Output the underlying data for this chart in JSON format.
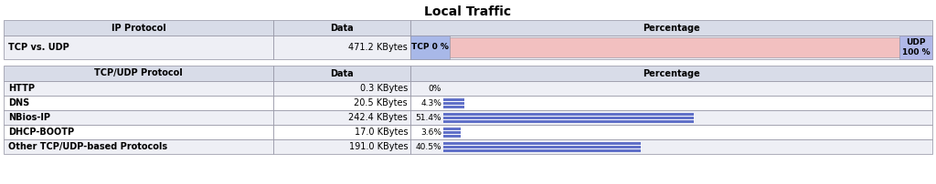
{
  "title": "Local Traffic",
  "top_table": {
    "headers": [
      "IP Protocol",
      "Data",
      "Percentage"
    ],
    "row": {
      "label": "TCP vs. UDP",
      "data": "471.2 KBytes",
      "tcp_label": "TCP 0 %",
      "udp_label": "UDP\n100 %",
      "bar_color": "#f2c0c0",
      "tcp_bg": "#a8b8e8",
      "udp_bg": "#b0b8e8"
    }
  },
  "bottom_table": {
    "headers": [
      "TCP/UDP Protocol",
      "Data",
      "Percentage"
    ],
    "rows": [
      {
        "label": "HTTP",
        "data": "0.3 KBytes",
        "pct": 0,
        "pct_label": "0%"
      },
      {
        "label": "DNS",
        "data": "20.5 KBytes",
        "pct": 4.3,
        "pct_label": "4.3%"
      },
      {
        "label": "NBios-IP",
        "data": "242.4 KBytes",
        "pct": 51.4,
        "pct_label": "51.4%"
      },
      {
        "label": "DHCP-BOOTP",
        "data": "17.0 KBytes",
        "pct": 3.6,
        "pct_label": "3.6%"
      },
      {
        "label": "Other TCP/UDP-based Protocols",
        "data": "191.0 KBytes",
        "pct": 40.5,
        "pct_label": "40.5%"
      }
    ],
    "bar_color": "#6070c8"
  },
  "header_bg": "#d8dce8",
  "odd_row_bg": "#eeeff5",
  "even_row_bg": "#ffffff",
  "border_color": "#9090a0",
  "title_fontsize": 10,
  "label_fontsize": 7,
  "header_fontsize": 7,
  "fig_w": 10.24,
  "fig_h": 2.02,
  "dpi": 100
}
